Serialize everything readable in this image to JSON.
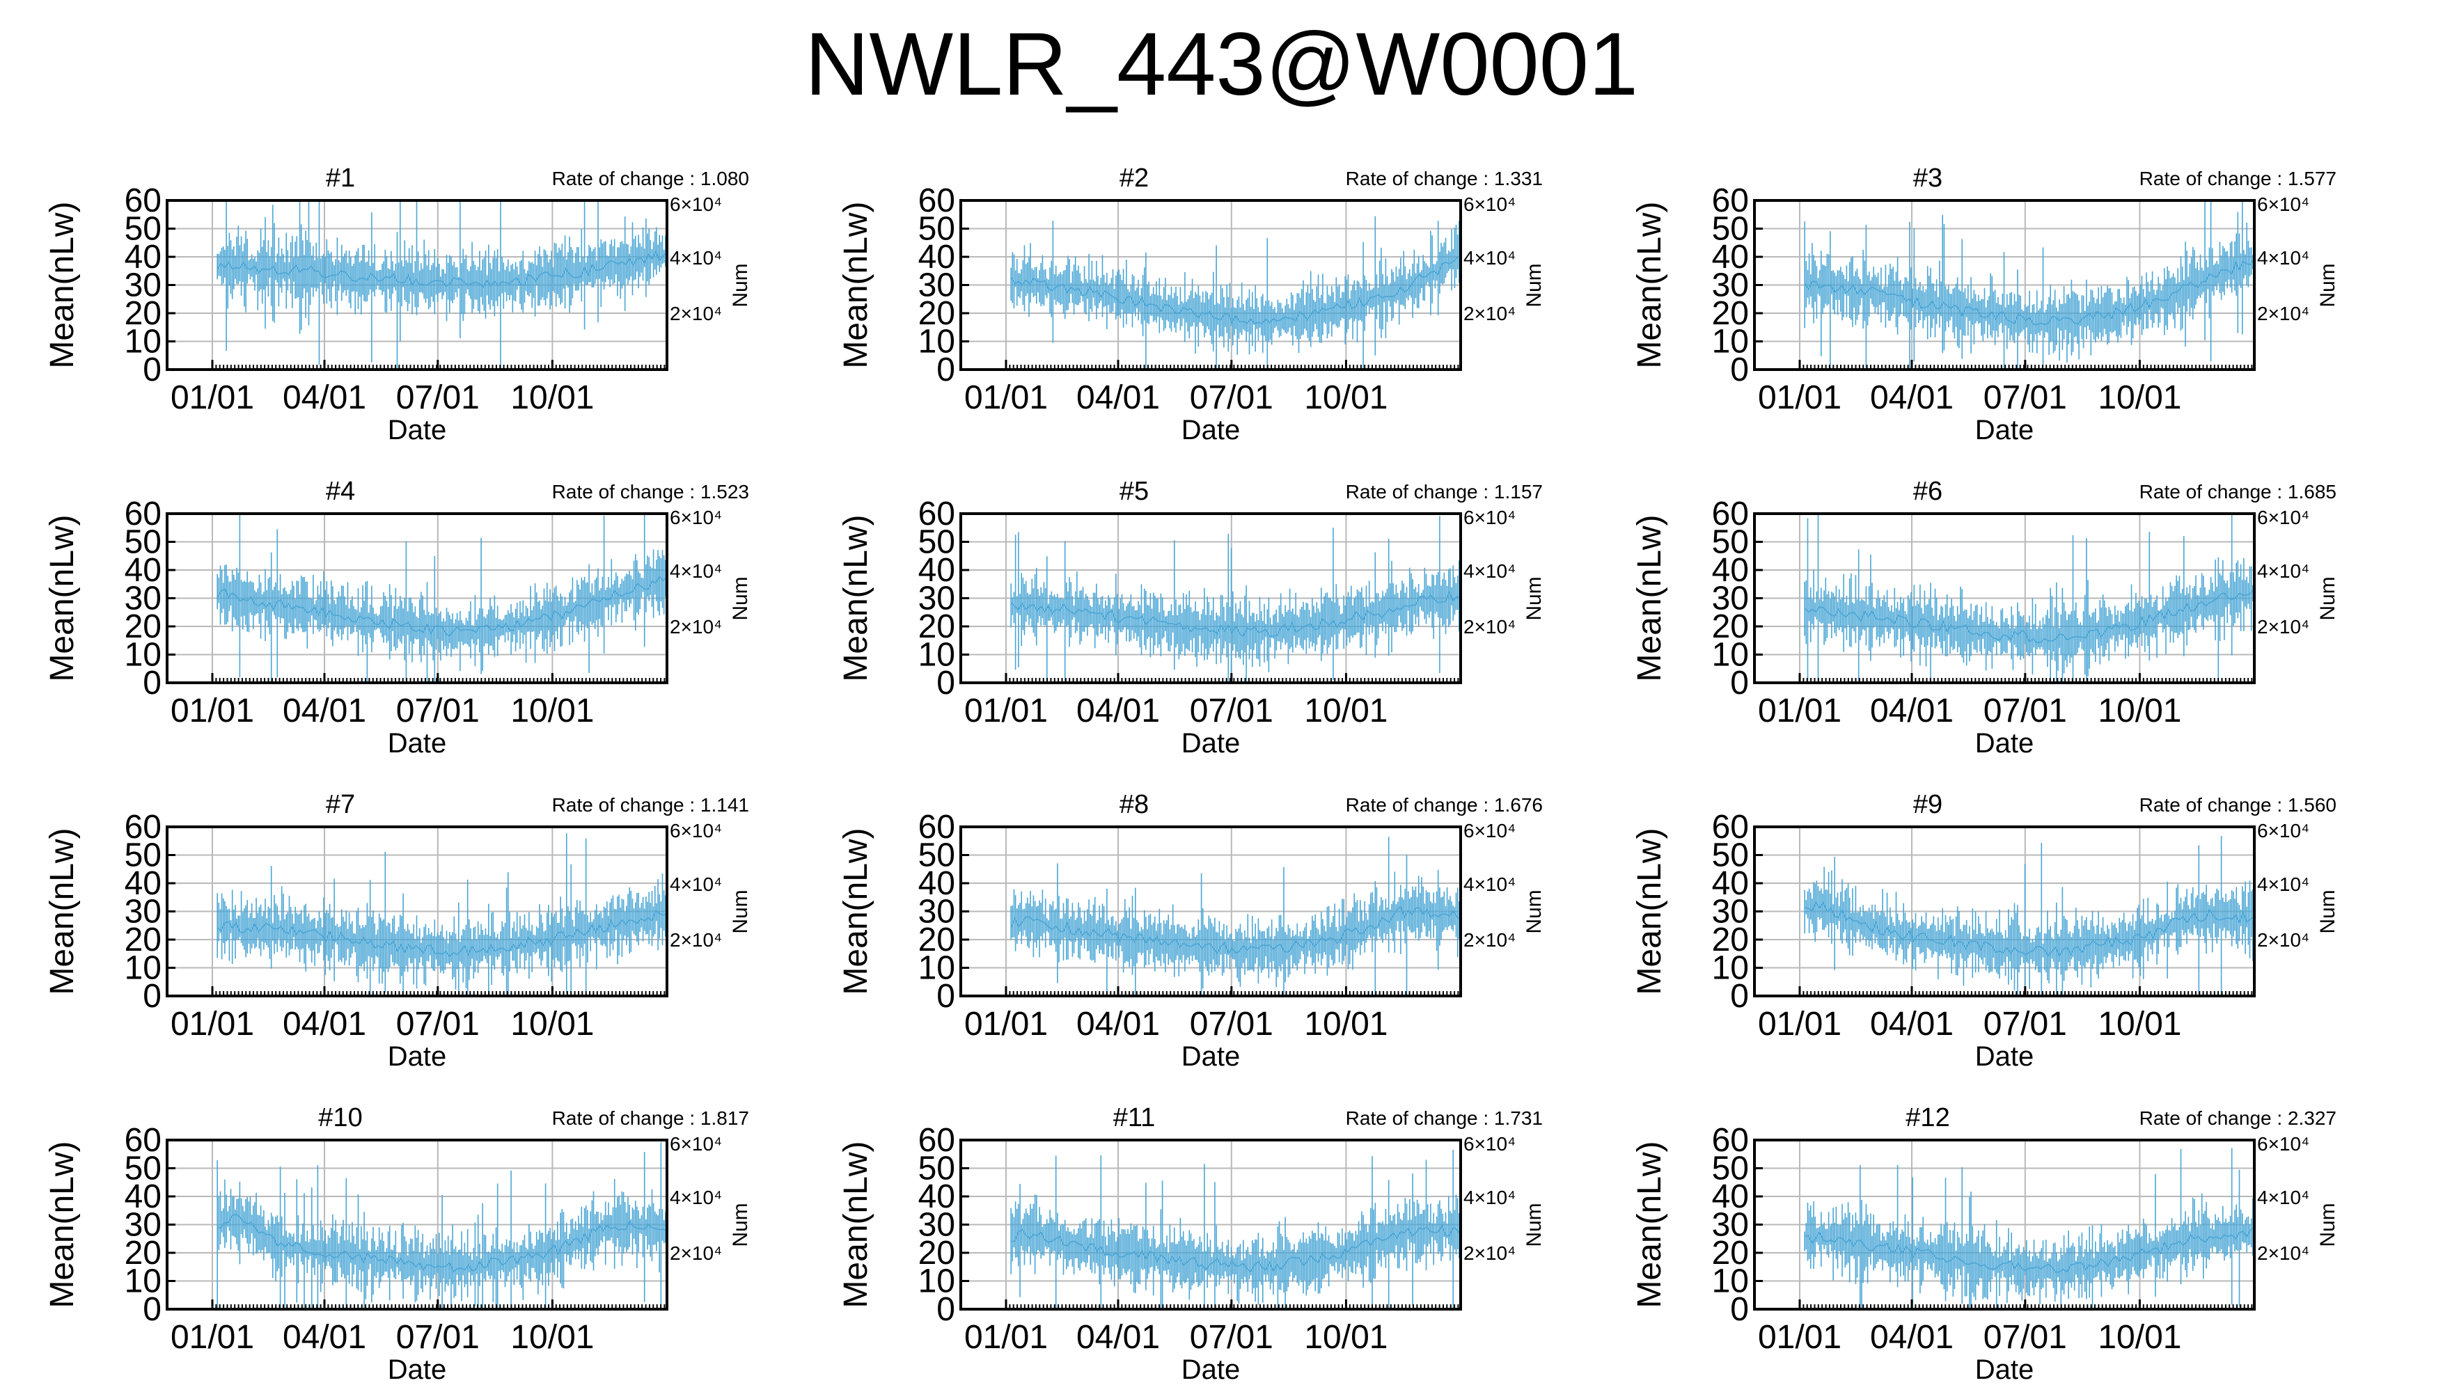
{
  "title": "NWLR_443@W0001",
  "chart_data": [
    {
      "type": "line",
      "title": "#1",
      "annotation": "Rate of change : 1.080",
      "xlabel": "Date",
      "ylabel": "Mean(nLw)",
      "y2label": "Num",
      "xticks": [
        "01/01",
        "04/01",
        "07/01",
        "10/01"
      ],
      "ylim": [
        0,
        60
      ],
      "yticks": [
        0,
        10,
        20,
        30,
        40,
        50,
        60
      ],
      "y2ticks": [
        "2×10⁴",
        "4×10⁴",
        "6×10⁴"
      ],
      "grid": true,
      "series": [
        {
          "values": [
            38,
            37,
            36,
            36,
            35,
            35,
            34,
            33,
            33,
            32,
            32,
            31,
            31,
            31,
            31,
            31,
            32,
            33,
            34,
            35,
            37,
            38,
            40,
            41
          ]
        }
      ]
    },
    {
      "type": "line",
      "title": "#2",
      "annotation": "Rate of change : 1.331",
      "xlabel": "Date",
      "ylabel": "Mean(nLw)",
      "y2label": "Num",
      "xticks": [
        "01/01",
        "04/01",
        "07/01",
        "10/01"
      ],
      "ylim": [
        0,
        60
      ],
      "yticks": [
        0,
        10,
        20,
        30,
        40,
        50,
        60
      ],
      "y2ticks": [
        "2×10⁴",
        "4×10⁴",
        "6×10⁴"
      ],
      "grid": true,
      "series": [
        {
          "values": [
            32,
            31,
            30,
            29,
            28,
            27,
            25,
            24,
            22,
            21,
            20,
            19,
            18,
            18,
            18,
            19,
            20,
            22,
            24,
            26,
            29,
            32,
            36,
            41
          ]
        }
      ]
    },
    {
      "type": "line",
      "title": "#3",
      "annotation": "Rate of change : 1.577",
      "xlabel": "Date",
      "ylabel": "Mean(nLw)",
      "y2label": "Num",
      "xticks": [
        "01/01",
        "04/01",
        "07/01",
        "10/01"
      ],
      "ylim": [
        0,
        60
      ],
      "yticks": [
        0,
        10,
        20,
        30,
        40,
        50,
        60
      ],
      "y2ticks": [
        "2×10⁴",
        "4×10⁴",
        "6×10⁴"
      ],
      "grid": true,
      "series": [
        {
          "values": [
            31,
            30,
            29,
            28,
            27,
            26,
            24,
            23,
            21,
            20,
            19,
            18,
            17,
            17,
            18,
            19,
            20,
            22,
            24,
            27,
            30,
            33,
            36,
            38
          ]
        }
      ]
    },
    {
      "type": "line",
      "title": "#4",
      "annotation": "Rate of change : 1.523",
      "xlabel": "Date",
      "ylabel": "Mean(nLw)",
      "y2label": "Num",
      "xticks": [
        "01/01",
        "04/01",
        "07/01",
        "10/01"
      ],
      "ylim": [
        0,
        60
      ],
      "yticks": [
        0,
        10,
        20,
        30,
        40,
        50,
        60
      ],
      "y2ticks": [
        "2×10⁴",
        "4×10⁴",
        "6×10⁴"
      ],
      "grid": true,
      "series": [
        {
          "values": [
            32,
            31,
            29,
            28,
            27,
            26,
            25,
            23,
            22,
            21,
            20,
            19,
            18,
            18,
            19,
            20,
            21,
            23,
            25,
            27,
            30,
            33,
            35,
            37
          ]
        }
      ]
    },
    {
      "type": "line",
      "title": "#5",
      "annotation": "Rate of change : 1.157",
      "xlabel": "Date",
      "ylabel": "Mean(nLw)",
      "y2label": "Num",
      "xticks": [
        "01/01",
        "04/01",
        "07/01",
        "10/01"
      ],
      "ylim": [
        0,
        60
      ],
      "yticks": [
        0,
        10,
        20,
        30,
        40,
        50,
        60
      ],
      "y2ticks": [
        "2×10⁴",
        "4×10⁴",
        "6×10⁴"
      ],
      "grid": true,
      "series": [
        {
          "values": [
            27,
            27,
            26,
            26,
            25,
            24,
            23,
            22,
            21,
            20,
            19,
            19,
            18,
            18,
            19,
            20,
            21,
            22,
            24,
            25,
            27,
            29,
            30,
            31
          ]
        }
      ]
    },
    {
      "type": "line",
      "title": "#6",
      "annotation": "Rate of change : 1.685",
      "xlabel": "Date",
      "ylabel": "Mean(nLw)",
      "y2label": "Num",
      "xticks": [
        "01/01",
        "04/01",
        "07/01",
        "10/01"
      ],
      "ylim": [
        0,
        60
      ],
      "yticks": [
        0,
        10,
        20,
        30,
        40,
        50,
        60
      ],
      "y2ticks": [
        "2×10⁴",
        "4×10⁴",
        "6×10⁴"
      ],
      "grid": true,
      "series": [
        {
          "values": [
            26,
            26,
            25,
            24,
            23,
            22,
            21,
            20,
            19,
            18,
            17,
            17,
            16,
            16,
            17,
            18,
            19,
            21,
            23,
            25,
            27,
            29,
            31,
            32
          ]
        }
      ]
    },
    {
      "type": "line",
      "title": "#7",
      "annotation": "Rate of change : 1.141",
      "xlabel": "Date",
      "ylabel": "Mean(nLw)",
      "y2label": "Num",
      "xticks": [
        "01/01",
        "04/01",
        "07/01",
        "10/01"
      ],
      "ylim": [
        0,
        60
      ],
      "yticks": [
        0,
        10,
        20,
        30,
        40,
        50,
        60
      ],
      "y2ticks": [
        "2×10⁴",
        "4×10⁴",
        "6×10⁴"
      ],
      "grid": true,
      "series": [
        {
          "values": [
            25,
            25,
            24,
            24,
            23,
            22,
            21,
            20,
            19,
            18,
            17,
            17,
            16,
            16,
            17,
            18,
            19,
            20,
            22,
            23,
            25,
            27,
            28,
            29
          ]
        }
      ]
    },
    {
      "type": "line",
      "title": "#8",
      "annotation": "Rate of change : 1.676",
      "xlabel": "Date",
      "ylabel": "Mean(nLw)",
      "y2label": "Num",
      "xticks": [
        "01/01",
        "04/01",
        "07/01",
        "10/01"
      ],
      "ylim": [
        0,
        60
      ],
      "yticks": [
        0,
        10,
        20,
        30,
        40,
        50,
        60
      ],
      "y2ticks": [
        "2×10⁴",
        "4×10⁴",
        "6×10⁴"
      ],
      "grid": true,
      "series": [
        {
          "values": [
            26,
            27,
            25,
            24,
            23,
            22,
            21,
            20,
            19,
            18,
            17,
            17,
            16,
            16,
            17,
            18,
            19,
            21,
            24,
            27,
            30,
            30,
            29,
            28
          ]
        }
      ]
    },
    {
      "type": "line",
      "title": "#9",
      "annotation": "Rate of change : 1.560",
      "xlabel": "Date",
      "ylabel": "Mean(nLw)",
      "y2label": "Num",
      "xticks": [
        "01/01",
        "04/01",
        "07/01",
        "10/01"
      ],
      "ylim": [
        0,
        60
      ],
      "yticks": [
        0,
        10,
        20,
        30,
        40,
        50,
        60
      ],
      "y2ticks": [
        "2×10⁴",
        "4×10⁴",
        "6×10⁴"
      ],
      "grid": true,
      "series": [
        {
          "values": [
            30,
            32,
            29,
            26,
            24,
            22,
            21,
            20,
            19,
            18,
            17,
            17,
            16,
            16,
            17,
            18,
            19,
            20,
            23,
            26,
            28,
            29,
            28,
            27
          ]
        }
      ]
    },
    {
      "type": "line",
      "title": "#10",
      "annotation": "Rate of change : 1.817",
      "xlabel": "Date",
      "ylabel": "Mean(nLw)",
      "y2label": "Num",
      "xticks": [
        "01/01",
        "04/01",
        "07/01",
        "10/01"
      ],
      "ylim": [
        0,
        60
      ],
      "yticks": [
        0,
        10,
        20,
        30,
        40,
        50,
        60
      ],
      "y2ticks": [
        "2×10⁴",
        "4×10⁴",
        "6×10⁴"
      ],
      "grid": true,
      "series": [
        {
          "values": [
            28,
            32,
            30,
            24,
            22,
            21,
            20,
            19,
            18,
            17,
            16,
            16,
            15,
            15,
            16,
            17,
            18,
            20,
            23,
            26,
            29,
            30,
            29,
            28
          ]
        }
      ]
    },
    {
      "type": "line",
      "title": "#11",
      "annotation": "Rate of change : 1.731",
      "xlabel": "Date",
      "ylabel": "Mean(nLw)",
      "y2label": "Num",
      "xticks": [
        "01/01",
        "04/01",
        "07/01",
        "10/01"
      ],
      "ylim": [
        0,
        60
      ],
      "yticks": [
        0,
        10,
        20,
        30,
        40,
        50,
        60
      ],
      "y2ticks": [
        "2×10⁴",
        "4×10⁴",
        "6×10⁴"
      ],
      "grid": true,
      "series": [
        {
          "values": [
            25,
            27,
            26,
            23,
            22,
            21,
            20,
            19,
            18,
            17,
            16,
            16,
            15,
            15,
            16,
            17,
            18,
            20,
            22,
            25,
            27,
            28,
            28,
            28
          ]
        }
      ]
    },
    {
      "type": "line",
      "title": "#12",
      "annotation": "Rate of change : 2.327",
      "xlabel": "Date",
      "ylabel": "Mean(nLw)",
      "y2label": "Num",
      "xticks": [
        "01/01",
        "04/01",
        "07/01",
        "10/01"
      ],
      "ylim": [
        0,
        60
      ],
      "yticks": [
        0,
        10,
        20,
        30,
        40,
        50,
        60
      ],
      "y2ticks": [
        "2×10⁴",
        "4×10⁴",
        "6×10⁴"
      ],
      "grid": true,
      "series": [
        {
          "values": [
            24,
            26,
            25,
            23,
            22,
            21,
            20,
            19,
            18,
            17,
            16,
            15,
            14,
            14,
            15,
            16,
            17,
            19,
            21,
            23,
            25,
            26,
            27,
            28
          ]
        }
      ]
    }
  ]
}
